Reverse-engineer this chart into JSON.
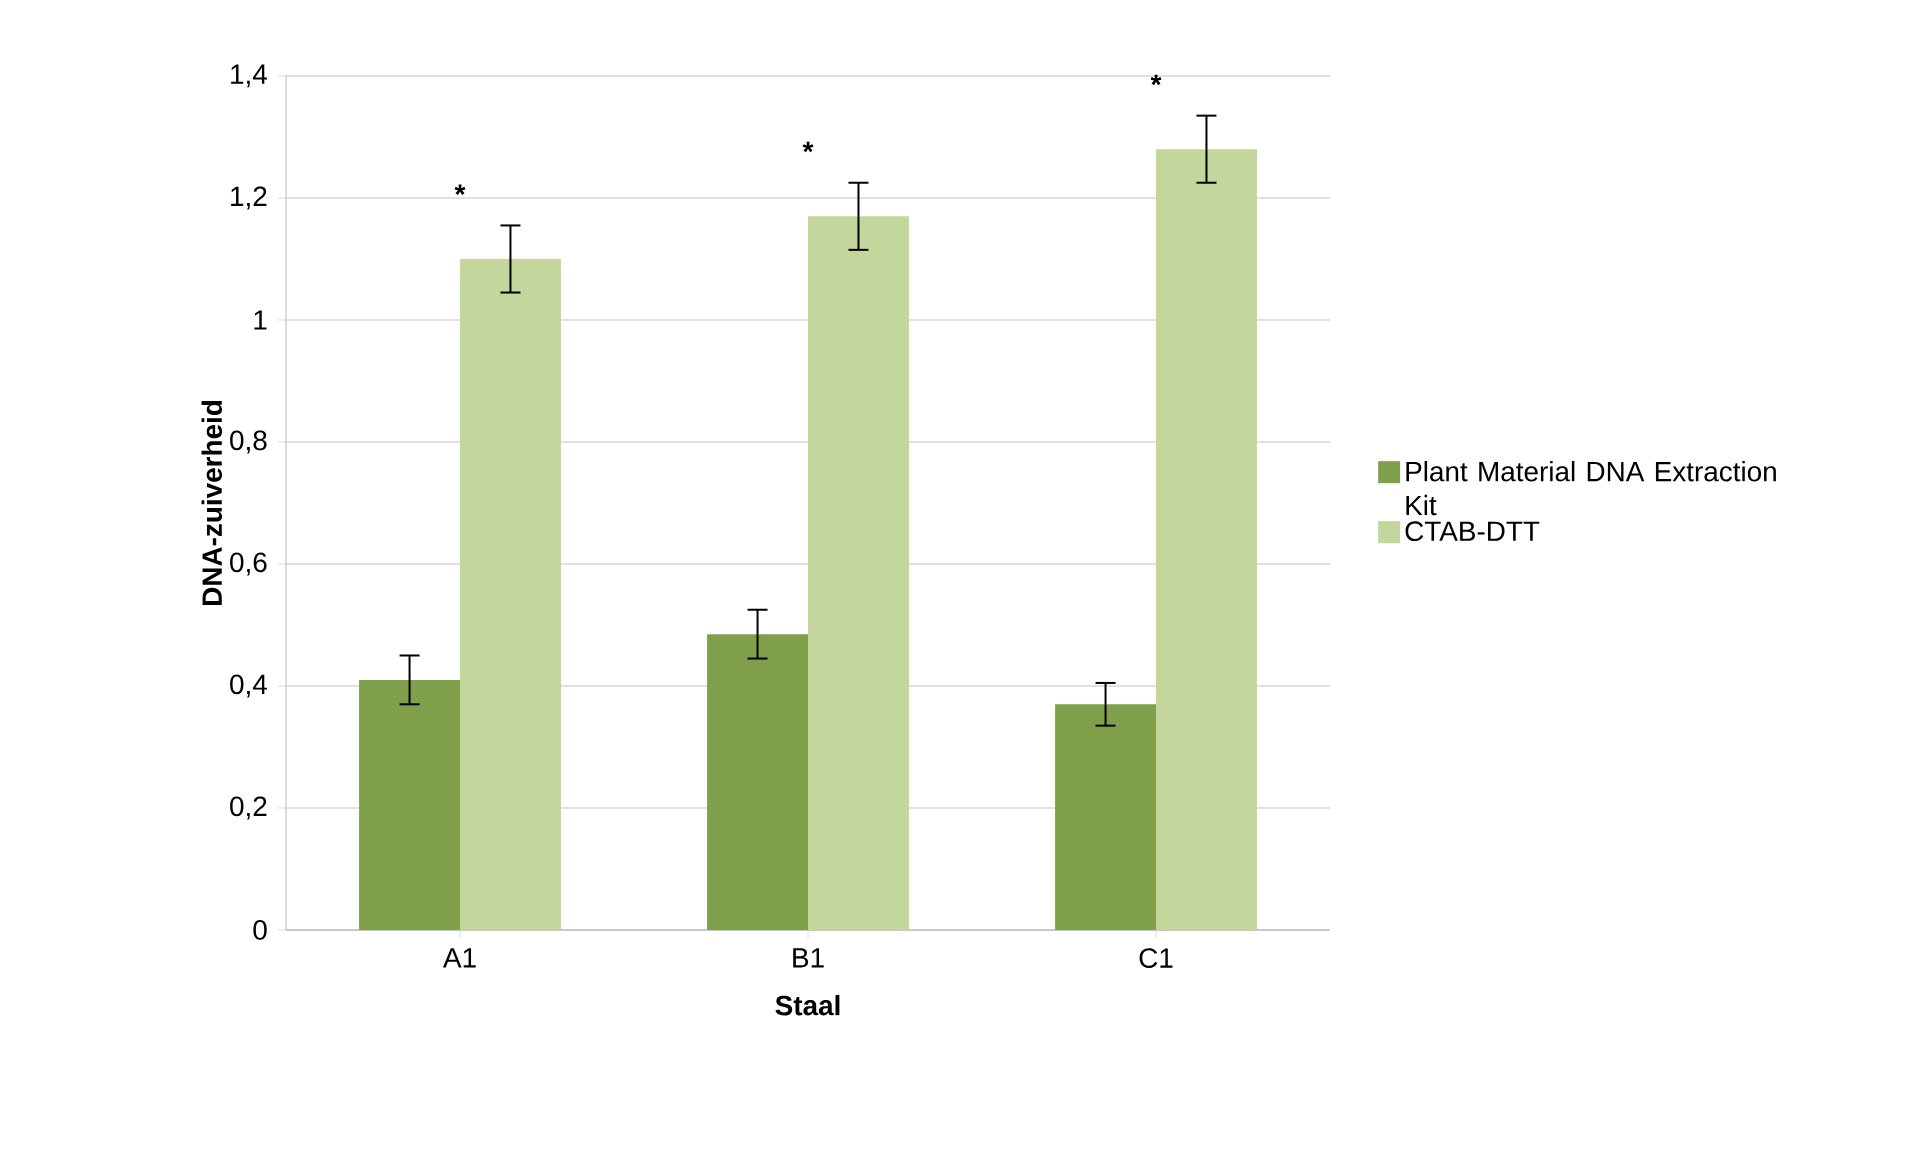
{
  "chart_data": {
    "type": "bar",
    "xlabel": "Staal",
    "ylabel": "DNA-zuiverheid",
    "categories": [
      "A1",
      "B1",
      "C1"
    ],
    "series": [
      {
        "name": "Plant Material DNA Extraction Kit",
        "color": "#7f9f4a",
        "values": [
          0.41,
          0.485,
          0.37
        ],
        "errors": [
          0.04,
          0.04,
          0.035
        ]
      },
      {
        "name": "CTAB-DTT",
        "color": "#c3d69b",
        "values": [
          1.1,
          1.17,
          1.28
        ],
        "errors": [
          0.055,
          0.055,
          0.055
        ]
      }
    ],
    "ylim": [
      0,
      1.4
    ],
    "yticks": [
      0,
      {
        "value": 0.2,
        "label": "0,2"
      },
      {
        "value": 0.4,
        "label": "0,4"
      },
      {
        "value": 0.6,
        "label": "0,6"
      },
      {
        "value": 0.8,
        "label": "0,8"
      },
      1,
      {
        "value": 1.2,
        "label": "1,2"
      },
      {
        "value": 1.4,
        "label": "1,4"
      }
    ],
    "annotations": [
      "*",
      "*",
      "*"
    ],
    "grid": "y",
    "legend": "right"
  }
}
